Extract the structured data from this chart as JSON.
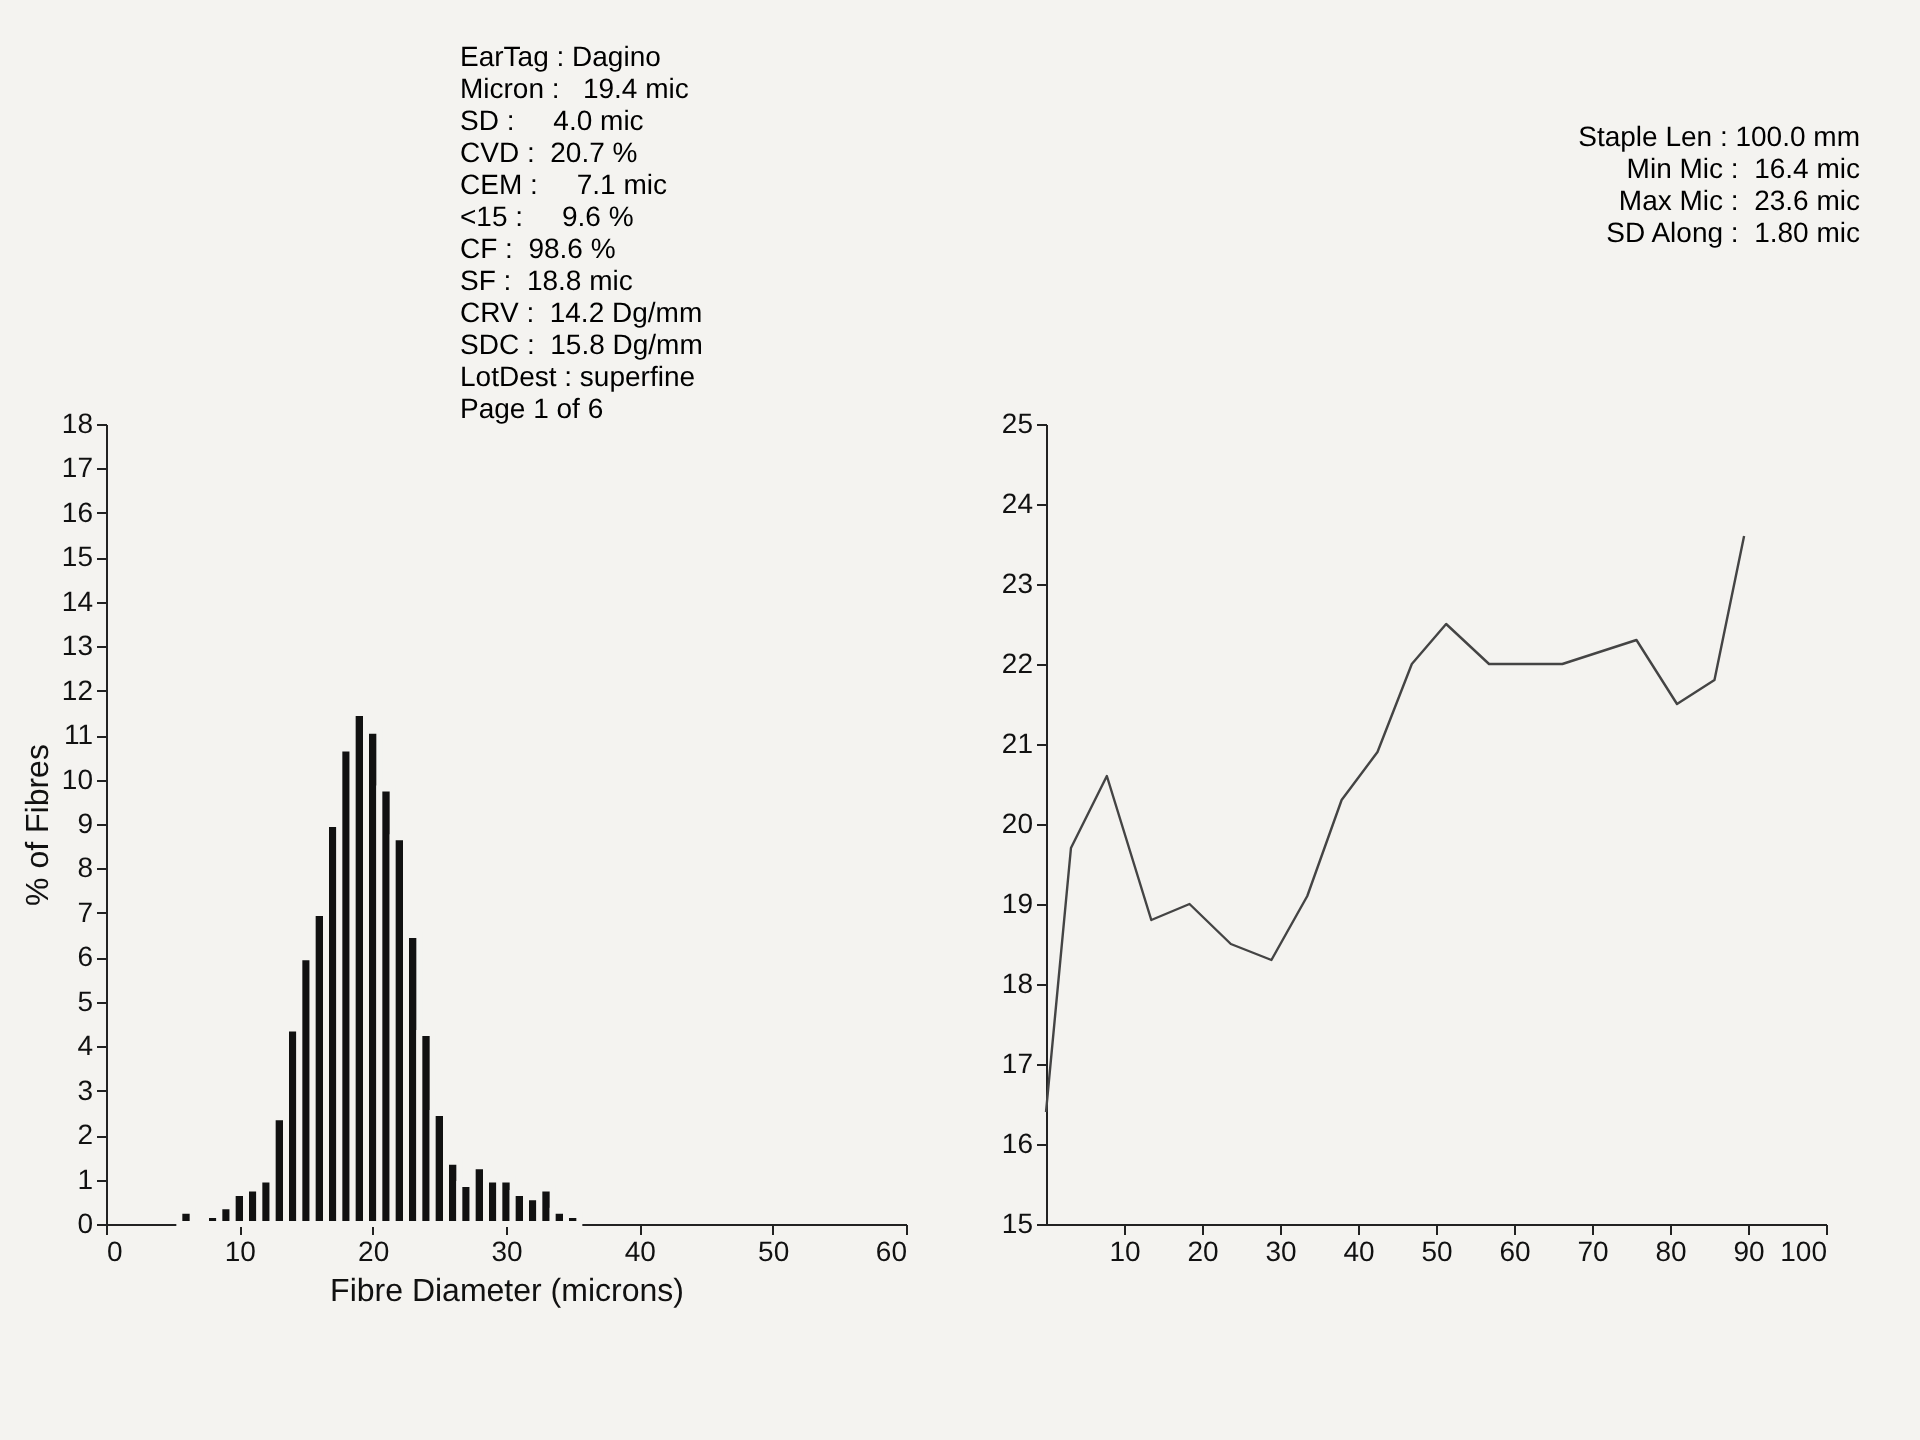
{
  "chart_data": [
    {
      "type": "histogram",
      "xlabel": "Fibre Diameter (microns)",
      "ylabel": "% of Fibres",
      "annotations": [
        "EarTag : Dagino",
        "Micron :   19.4 mic",
        "SD :     4.0 mic",
        "CVD :  20.7 %",
        "CEM :     7.1 mic",
        "<15 :     9.6 %",
        "CF :  98.6 %",
        "SF :  18.8 mic",
        "CRV :  14.2 Dg/mm",
        "SDC :  15.8 Dg/mm",
        "LotDest : superfine",
        "Page 1 of 6"
      ],
      "bins": [
        5.5,
        6.5,
        7.5,
        8.5,
        9.5,
        10.5,
        11.5,
        12.5,
        13.5,
        14.5,
        15.5,
        16.5,
        17.5,
        18.5,
        19.5,
        20.5,
        21.5,
        22.5,
        23.5,
        24.5,
        25.5,
        26.5,
        27.5,
        28.5,
        29.5,
        30.5,
        31.5,
        32.5,
        33.5,
        34.5,
        35.5
      ],
      "values": [
        0.3,
        null,
        0.2,
        0.4,
        0.7,
        0.8,
        1.0,
        2.4,
        4.4,
        6.0,
        7.0,
        9.0,
        10.7,
        11.5,
        11.1,
        9.8,
        8.7,
        6.5,
        4.3,
        2.5,
        1.4,
        0.9,
        1.3,
        1.0,
        1.0,
        0.7,
        0.6,
        0.8,
        0.3,
        0.2
      ],
      "color": "#111111",
      "xlim": [
        0,
        60
      ],
      "xticks": [
        0,
        10,
        20,
        30,
        40,
        50,
        60
      ],
      "ylim": [
        0,
        18
      ],
      "yticks": [
        0,
        1,
        2,
        3,
        4,
        5,
        6,
        7,
        8,
        9,
        10,
        11,
        12,
        13,
        14,
        15,
        16,
        17,
        18
      ],
      "grid": false
    },
    {
      "type": "line",
      "annotations": [
        "Staple Len : 100.0 mm",
        "Min Mic :  16.4 mic",
        "Max Mic :  23.6 mic",
        "SD Along :  1.80 mic"
      ],
      "x": [
        0,
        3.2,
        7.8,
        13.5,
        18.4,
        23.7,
        28.9,
        33.5,
        37.9,
        42.5,
        46.9,
        51.3,
        56.8,
        66.2,
        75.7,
        80.9,
        85.7,
        89.5
      ],
      "values": [
        16.4,
        19.7,
        20.6,
        18.8,
        19.0,
        18.5,
        18.3,
        19.1,
        20.3,
        20.9,
        22.0,
        22.5,
        22.0,
        22.0,
        22.3,
        21.5,
        21.8,
        23.6
      ],
      "color": "#444444",
      "xlim": [
        0,
        100
      ],
      "xticks": [
        10,
        20,
        30,
        40,
        50,
        60,
        70,
        80,
        90,
        100
      ],
      "ylim": [
        15,
        25
      ],
      "yticks": [
        15,
        16,
        17,
        18,
        19,
        20,
        21,
        22,
        23,
        24,
        25
      ],
      "grid": false,
      "marker": "none",
      "line_style": "solid"
    }
  ]
}
